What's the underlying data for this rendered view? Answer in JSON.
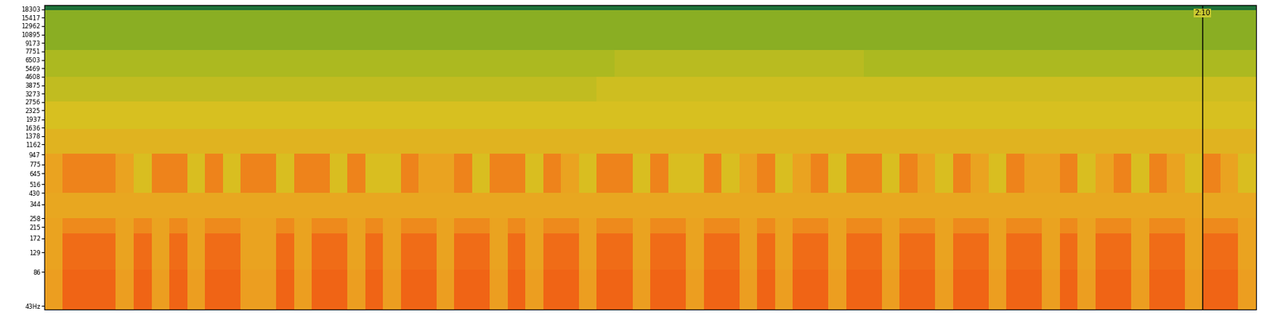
{
  "chart_data": {
    "type": "heatmap",
    "log": "y",
    "tick_labels": "y",
    "xlim": [
      0,
      136
    ],
    "ylim": [
      40,
      20000
    ],
    "yticks": [
      {
        "value": 43,
        "label": "43Hz"
      },
      86,
      129,
      172,
      215,
      258,
      344,
      430,
      516,
      645,
      775,
      947,
      1162,
      1378,
      1636,
      1937,
      2325,
      2756,
      3273,
      3875,
      4608,
      5469,
      6503,
      7751,
      9173,
      10895,
      12962,
      15417,
      18303
    ],
    "zlim": [
      0,
      100
    ],
    "annotations": [
      {
        "x": 130,
        "text": "2:10"
      }
    ],
    "x_edges": [
      0,
      2,
      4,
      6,
      8,
      10,
      12,
      14,
      16,
      18,
      20,
      22,
      24,
      26,
      28,
      30,
      32,
      34,
      36,
      38,
      40,
      42,
      44,
      46,
      48,
      50,
      52,
      54,
      56,
      58,
      60,
      62,
      64,
      66,
      68,
      70,
      72,
      74,
      76,
      78,
      80,
      82,
      84,
      86,
      88,
      90,
      92,
      94,
      96,
      98,
      100,
      102,
      104,
      106,
      108,
      110,
      112,
      114,
      116,
      118,
      120,
      122,
      124,
      126,
      128,
      130,
      132,
      134,
      136
    ],
    "y_edges": [
      40,
      90,
      190,
      260,
      430,
      960,
      1600,
      2800,
      4600,
      8000,
      18000,
      20000
    ],
    "cells": [
      [
        72,
        90,
        90,
        90,
        72,
        90,
        72,
        90,
        72,
        90,
        90,
        72,
        72,
        90,
        72,
        90,
        90,
        72,
        90,
        72,
        90,
        90,
        72,
        90,
        90,
        72,
        90,
        72,
        90,
        90,
        72,
        90,
        90,
        72,
        90,
        90,
        72,
        90,
        90,
        72,
        90,
        72,
        90,
        90,
        72,
        90,
        90,
        72,
        90,
        90,
        72,
        90,
        90,
        72,
        90,
        90,
        72,
        90,
        72,
        90,
        90,
        72,
        90,
        90,
        72,
        90,
        90,
        72
      ],
      [
        70,
        87,
        87,
        87,
        70,
        87,
        70,
        87,
        70,
        87,
        87,
        70,
        70,
        87,
        70,
        87,
        87,
        70,
        87,
        70,
        87,
        87,
        70,
        87,
        87,
        70,
        87,
        70,
        87,
        87,
        70,
        87,
        87,
        70,
        87,
        87,
        70,
        87,
        87,
        70,
        87,
        70,
        87,
        87,
        70,
        87,
        87,
        70,
        87,
        87,
        70,
        87,
        87,
        70,
        87,
        87,
        70,
        87,
        70,
        87,
        87,
        70,
        87,
        87,
        70,
        87,
        87,
        70
      ],
      [
        70,
        78,
        78,
        78,
        70,
        78,
        70,
        78,
        70,
        78,
        78,
        70,
        70,
        78,
        70,
        78,
        78,
        70,
        78,
        70,
        78,
        78,
        70,
        78,
        78,
        70,
        78,
        70,
        78,
        78,
        70,
        78,
        78,
        70,
        78,
        78,
        70,
        78,
        78,
        70,
        78,
        70,
        78,
        78,
        70,
        78,
        78,
        70,
        78,
        78,
        70,
        78,
        78,
        70,
        78,
        78,
        70,
        78,
        70,
        78,
        78,
        70,
        78,
        78,
        70,
        78,
        78,
        70
      ],
      [
        68,
        68,
        68,
        68,
        68,
        68,
        68,
        68,
        68,
        68,
        68,
        68,
        68,
        68,
        68,
        68,
        68,
        68,
        68,
        68,
        68,
        68,
        68,
        68,
        68,
        68,
        68,
        68,
        68,
        68,
        68,
        68,
        68,
        68,
        68,
        68,
        68,
        68,
        68,
        68,
        68,
        68,
        68,
        68,
        68,
        68,
        68,
        68,
        68,
        68,
        68,
        68,
        68,
        68,
        68,
        68,
        68,
        68,
        68,
        68,
        68,
        68,
        68,
        68,
        68,
        68,
        68,
        68
      ],
      [
        70,
        80,
        80,
        80,
        70,
        58,
        80,
        80,
        58,
        80,
        58,
        80,
        80,
        58,
        80,
        80,
        58,
        80,
        58,
        58,
        80,
        70,
        70,
        80,
        58,
        80,
        80,
        58,
        80,
        70,
        58,
        80,
        80,
        58,
        80,
        58,
        58,
        80,
        58,
        70,
        80,
        58,
        70,
        80,
        58,
        80,
        80,
        58,
        80,
        70,
        58,
        80,
        70,
        58,
        80,
        70,
        70,
        80,
        58,
        70,
        80,
        58,
        80,
        70,
        58,
        80,
        70,
        58
      ],
      [
        63,
        63,
        63,
        63,
        63,
        63,
        63,
        63,
        63,
        63,
        63,
        63,
        63,
        63,
        63,
        63,
        63,
        63,
        63,
        63,
        63,
        63,
        63,
        63,
        63,
        63,
        63,
        63,
        63,
        63,
        63,
        63,
        63,
        63,
        63,
        63,
        63,
        63,
        63,
        63,
        63,
        63,
        63,
        63,
        63,
        63,
        63,
        63,
        63,
        63,
        63,
        63,
        63,
        63,
        63,
        63,
        63,
        63,
        63,
        63,
        63,
        63,
        63,
        63,
        63,
        63,
        63,
        63
      ],
      [
        57,
        57,
        57,
        57,
        57,
        57,
        57,
        57,
        57,
        57,
        57,
        57,
        57,
        57,
        57,
        57,
        57,
        57,
        57,
        57,
        57,
        57,
        57,
        57,
        57,
        57,
        57,
        57,
        57,
        57,
        57,
        57,
        57,
        57,
        57,
        57,
        57,
        57,
        57,
        57,
        57,
        57,
        57,
        57,
        57,
        57,
        57,
        57,
        57,
        57,
        57,
        57,
        57,
        57,
        57,
        57,
        57,
        57,
        57,
        57,
        57,
        57,
        57,
        57,
        57,
        57,
        57,
        57
      ],
      [
        50,
        50,
        50,
        50,
        50,
        50,
        50,
        50,
        50,
        50,
        50,
        50,
        50,
        50,
        50,
        50,
        50,
        50,
        50,
        50,
        50,
        50,
        50,
        50,
        50,
        50,
        50,
        50,
        50,
        50,
        50,
        54,
        54,
        54,
        54,
        54,
        54,
        54,
        54,
        54,
        54,
        54,
        54,
        54,
        54,
        54,
        54,
        54,
        54,
        54,
        54,
        54,
        54,
        54,
        54,
        54,
        54,
        54,
        54,
        54,
        54,
        54,
        54,
        54,
        54,
        54,
        54,
        54
      ],
      [
        44,
        44,
        44,
        44,
        44,
        44,
        44,
        44,
        44,
        44,
        44,
        44,
        44,
        44,
        44,
        44,
        44,
        44,
        44,
        44,
        44,
        44,
        44,
        44,
        44,
        44,
        44,
        44,
        44,
        44,
        44,
        44,
        48,
        48,
        48,
        48,
        48,
        48,
        48,
        48,
        48,
        48,
        48,
        48,
        48,
        48,
        44,
        44,
        44,
        44,
        44,
        44,
        44,
        44,
        44,
        44,
        44,
        44,
        44,
        44,
        44,
        44,
        44,
        44,
        44,
        44,
        44,
        44
      ],
      [
        38,
        38,
        38,
        38,
        38,
        38,
        38,
        38,
        38,
        38,
        38,
        38,
        38,
        38,
        38,
        38,
        38,
        38,
        38,
        38,
        38,
        38,
        38,
        38,
        38,
        38,
        38,
        38,
        38,
        38,
        38,
        38,
        38,
        38,
        38,
        38,
        38,
        38,
        38,
        38,
        38,
        38,
        38,
        38,
        38,
        38,
        38,
        38,
        38,
        38,
        38,
        38,
        38,
        38,
        38,
        38,
        38,
        38,
        38,
        38,
        38,
        38,
        38,
        38,
        38,
        38,
        38,
        38
      ],
      [
        15,
        15,
        15,
        15,
        15,
        15,
        15,
        15,
        15,
        15,
        15,
        15,
        15,
        15,
        15,
        15,
        15,
        15,
        15,
        15,
        15,
        15,
        15,
        15,
        15,
        15,
        15,
        15,
        15,
        15,
        15,
        15,
        15,
        15,
        15,
        15,
        15,
        15,
        15,
        15,
        15,
        15,
        15,
        15,
        15,
        15,
        15,
        15,
        15,
        15,
        15,
        15,
        15,
        15,
        15,
        15,
        15,
        15,
        15,
        15,
        15,
        15,
        15,
        15,
        15,
        15,
        15,
        15
      ]
    ]
  }
}
